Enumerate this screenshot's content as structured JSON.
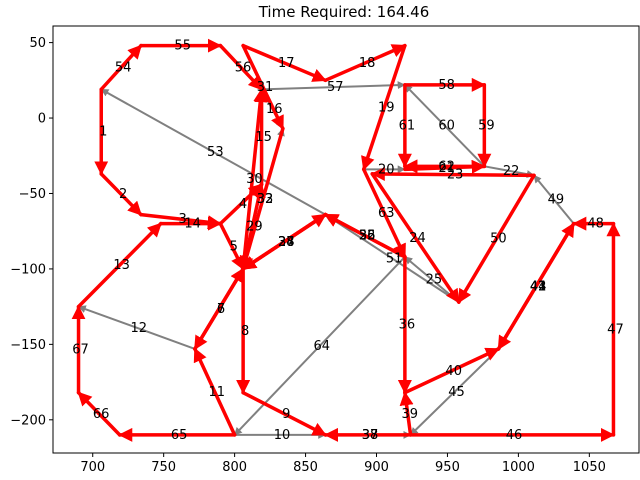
{
  "chart_data": {
    "type": "network-graph",
    "title": "Time Required: 164.46",
    "xlim": [
      672,
      1085
    ],
    "ylim": [
      -222,
      61
    ],
    "x_ticks": [
      700,
      750,
      800,
      850,
      900,
      950,
      1000,
      1050
    ],
    "y_ticks": [
      50,
      0,
      -50,
      -100,
      -150,
      -200
    ],
    "colors": {
      "route": "#ff0000",
      "link": "#808080"
    },
    "nodes": [
      {
        "id": "A",
        "x": 706,
        "y": 19
      },
      {
        "id": "B",
        "x": 706,
        "y": -37
      },
      {
        "id": "C",
        "x": 734,
        "y": -64
      },
      {
        "id": "D",
        "x": 734,
        "y": 48
      },
      {
        "id": "E",
        "x": 790,
        "y": 48
      },
      {
        "id": "F",
        "x": 819,
        "y": 19
      },
      {
        "id": "G",
        "x": 806,
        "y": 48
      },
      {
        "id": "H",
        "x": 834,
        "y": -7
      },
      {
        "id": "I",
        "x": 864,
        "y": 25
      },
      {
        "id": "J",
        "x": 920,
        "y": 48
      },
      {
        "id": "K",
        "x": 920,
        "y": 22
      },
      {
        "id": "L",
        "x": 976,
        "y": 22
      },
      {
        "id": "M",
        "x": 976,
        "y": -32
      },
      {
        "id": "N",
        "x": 920,
        "y": -32
      },
      {
        "id": "O",
        "x": 891,
        "y": -34
      },
      {
        "id": "P",
        "x": 1011,
        "y": -38
      },
      {
        "id": "Q",
        "x": 1039,
        "y": -70
      },
      {
        "id": "R",
        "x": 1067,
        "y": -70
      },
      {
        "id": "S",
        "x": 1067,
        "y": -210
      },
      {
        "id": "T",
        "x": 924,
        "y": -210
      },
      {
        "id": "U",
        "x": 864,
        "y": -210
      },
      {
        "id": "V",
        "x": 800,
        "y": -210
      },
      {
        "id": "W",
        "x": 719,
        "y": -210
      },
      {
        "id": "X",
        "x": 690,
        "y": -182
      },
      {
        "id": "Y",
        "x": 690,
        "y": -125
      },
      {
        "id": "Z",
        "x": 748,
        "y": -70
      },
      {
        "id": "AA",
        "x": 790,
        "y": -70
      },
      {
        "id": "AB",
        "x": 819,
        "y": -44
      },
      {
        "id": "AC",
        "x": 806,
        "y": -100
      },
      {
        "id": "AD",
        "x": 806,
        "y": -182
      },
      {
        "id": "AE",
        "x": 772,
        "y": -153
      },
      {
        "id": "AF",
        "x": 864,
        "y": -64
      },
      {
        "id": "AG",
        "x": 920,
        "y": -92
      },
      {
        "id": "AH",
        "x": 920,
        "y": -182
      },
      {
        "id": "AI",
        "x": 958,
        "y": -122
      },
      {
        "id": "AJ",
        "x": 986,
        "y": -153
      },
      {
        "id": "AK",
        "x": 897,
        "y": -37
      },
      {
        "id": "AL",
        "x": 920,
        "y": -34
      }
    ],
    "edges": [
      {
        "label": "1",
        "from": "A",
        "to": "B",
        "route": true
      },
      {
        "label": "2",
        "from": "B",
        "to": "C",
        "route": true
      },
      {
        "label": "3",
        "from": "C",
        "to": "AA",
        "route": true
      },
      {
        "label": "4",
        "from": "AA",
        "to": "AB",
        "route": true
      },
      {
        "label": "5",
        "from": "AA",
        "to": "AC",
        "route": true
      },
      {
        "label": "6",
        "from": "AC",
        "to": "AE",
        "route": true
      },
      {
        "label": "7",
        "from": "AE",
        "to": "AC",
        "route": true
      },
      {
        "label": "8",
        "from": "AC",
        "to": "AD",
        "route": true
      },
      {
        "label": "9",
        "from": "AD",
        "to": "U",
        "route": true
      },
      {
        "label": "10",
        "from": "V",
        "to": "U",
        "route": false
      },
      {
        "label": "11",
        "from": "V",
        "to": "AE",
        "route": true
      },
      {
        "label": "12",
        "from": "AE",
        "to": "Y",
        "route": false
      },
      {
        "label": "13",
        "from": "Y",
        "to": "Z",
        "route": true
      },
      {
        "label": "14",
        "from": "Z",
        "to": "AA",
        "route": true
      },
      {
        "label": "15",
        "from": "AB",
        "to": "F",
        "route": true
      },
      {
        "label": "16",
        "from": "F",
        "to": "H",
        "route": false
      },
      {
        "label": "17",
        "from": "G",
        "to": "I",
        "route": true
      },
      {
        "label": "18",
        "from": "I",
        "to": "J",
        "route": true
      },
      {
        "label": "19",
        "from": "J",
        "to": "O",
        "route": true
      },
      {
        "label": "20",
        "from": "O",
        "to": "AL",
        "route": false
      },
      {
        "label": "21",
        "from": "AL",
        "to": "M",
        "route": true
      },
      {
        "label": "22",
        "from": "M",
        "to": "P",
        "route": false
      },
      {
        "label": "23",
        "from": "P",
        "to": "AK",
        "route": true
      },
      {
        "label": "24",
        "from": "AK",
        "to": "AI",
        "route": true
      },
      {
        "label": "25",
        "from": "AI",
        "to": "AG",
        "route": false
      },
      {
        "label": "26",
        "from": "AG",
        "to": "AF",
        "route": true
      },
      {
        "label": "27",
        "from": "AC",
        "to": "AF",
        "route": true
      },
      {
        "label": "28",
        "from": "AF",
        "to": "AC",
        "route": true
      },
      {
        "label": "29",
        "from": "AC",
        "to": "AB",
        "route": true
      },
      {
        "label": "30",
        "from": "AC",
        "to": "F",
        "route": true
      },
      {
        "label": "31",
        "from": "G",
        "to": "H",
        "route": true
      },
      {
        "label": "32",
        "from": "H",
        "to": "AC",
        "route": true
      },
      {
        "label": "33",
        "from": "AC",
        "to": "H",
        "route": false
      },
      {
        "label": "34",
        "from": "AF",
        "to": "AC",
        "route": true
      },
      {
        "label": "35",
        "from": "AF",
        "to": "AG",
        "route": false
      },
      {
        "label": "36",
        "from": "AG",
        "to": "AH",
        "route": true
      },
      {
        "label": "37",
        "from": "T",
        "to": "U",
        "route": true
      },
      {
        "label": "38",
        "from": "U",
        "to": "T",
        "route": false
      },
      {
        "label": "39",
        "from": "T",
        "to": "AH",
        "route": true
      },
      {
        "label": "40",
        "from": "AH",
        "to": "AJ",
        "route": true
      },
      {
        "label": "41",
        "from": "AJ",
        "to": "Q",
        "route": true
      },
      {
        "label": "42",
        "from": "Q",
        "to": "AJ",
        "route": true
      },
      {
        "label": "43",
        "from": "AJ",
        "to": "Q",
        "route": false
      },
      {
        "label": "44",
        "from": "Q",
        "to": "AJ",
        "route": false
      },
      {
        "label": "45",
        "from": "AJ",
        "to": "T",
        "route": false
      },
      {
        "label": "46",
        "from": "T",
        "to": "S",
        "route": true
      },
      {
        "label": "47",
        "from": "S",
        "to": "R",
        "route": true
      },
      {
        "label": "48",
        "from": "R",
        "to": "Q",
        "route": true
      },
      {
        "label": "49",
        "from": "Q",
        "to": "P",
        "route": false
      },
      {
        "label": "50",
        "from": "P",
        "to": "AI",
        "route": true
      },
      {
        "label": "51",
        "from": "AI",
        "to": "AF",
        "route": false
      },
      {
        "label": "52",
        "from": "AG",
        "to": "AF",
        "route": true
      },
      {
        "label": "53",
        "from": "AF",
        "to": "A",
        "route": false
      },
      {
        "label": "54",
        "from": "A",
        "to": "D",
        "route": true
      },
      {
        "label": "55",
        "from": "D",
        "to": "E",
        "route": true
      },
      {
        "label": "56",
        "from": "E",
        "to": "F",
        "route": true
      },
      {
        "label": "57",
        "from": "F",
        "to": "K",
        "route": false
      },
      {
        "label": "58",
        "from": "K",
        "to": "L",
        "route": true
      },
      {
        "label": "59",
        "from": "L",
        "to": "M",
        "route": true
      },
      {
        "label": "60",
        "from": "M",
        "to": "K",
        "route": false
      },
      {
        "label": "61",
        "from": "K",
        "to": "N",
        "route": true
      },
      {
        "label": "62",
        "from": "M",
        "to": "N",
        "route": true
      },
      {
        "label": "63",
        "from": "O",
        "to": "AG",
        "route": true
      },
      {
        "label": "64",
        "from": "AG",
        "to": "V",
        "route": false
      },
      {
        "label": "65",
        "from": "V",
        "to": "W",
        "route": true
      },
      {
        "label": "66",
        "from": "W",
        "to": "X",
        "route": true
      },
      {
        "label": "67",
        "from": "X",
        "to": "Y",
        "route": true
      }
    ]
  }
}
